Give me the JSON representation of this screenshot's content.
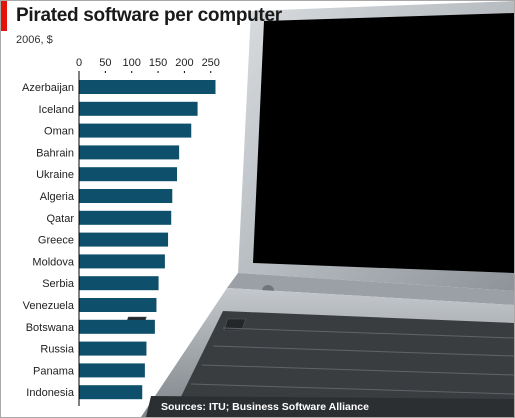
{
  "title": "Pirated software per computer",
  "subtitle": "2006, $",
  "source": "Sources: ITU; Business Software Alliance",
  "colors": {
    "bar": "#0e4f6b",
    "accent": "#e3120b",
    "axis": "#000000"
  },
  "chart_data": {
    "type": "bar",
    "orientation": "horizontal",
    "title": "Pirated software per computer",
    "subtitle": "2006, $",
    "xlabel": "",
    "ylabel": "",
    "xlim": [
      0,
      250
    ],
    "ticks": [
      0,
      50,
      100,
      150,
      200,
      250
    ],
    "grid": false,
    "categories": [
      "Azerbaijan",
      "Iceland",
      "Oman",
      "Bahrain",
      "Ukraine",
      "Algeria",
      "Qatar",
      "Greece",
      "Moldova",
      "Serbia",
      "Venezuela",
      "Botswana",
      "Russia",
      "Panama",
      "Indonesia"
    ],
    "values": [
      259,
      225,
      213,
      190,
      186,
      177,
      175,
      169,
      163,
      151,
      147,
      144,
      128,
      125,
      120
    ]
  }
}
